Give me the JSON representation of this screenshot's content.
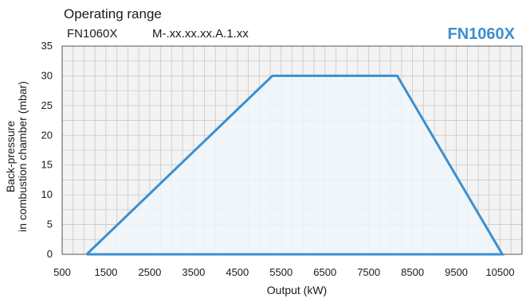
{
  "header": {
    "title": "Operating range",
    "model": "FN1060X",
    "code": "M-.xx.xx.xx.A.1.xx",
    "brand": "FN1060X"
  },
  "chart_data": {
    "type": "area",
    "xlabel": "Output (kW)",
    "ylabel_lines": [
      "Back-pressure",
      "in combustion chamber (mbar)"
    ],
    "xlim": [
      500,
      11000
    ],
    "ylim": [
      0,
      35
    ],
    "xticks": [
      500,
      1500,
      2500,
      3500,
      4500,
      5500,
      6500,
      7500,
      8500,
      9500,
      10500
    ],
    "yticks": [
      0,
      5,
      10,
      15,
      20,
      25,
      30,
      35
    ],
    "grid": true,
    "series": [
      {
        "x": [
          1060,
          5300,
          8150,
          10550,
          1060
        ],
        "y": [
          0,
          30,
          30,
          0,
          0
        ]
      }
    ],
    "colors": {
      "line": "#3b8fd0",
      "fill": "#eef6fa",
      "grid": "#c8c8c8",
      "plot_bg": "#f3f3f3",
      "brand": "#3b8fd0"
    }
  }
}
